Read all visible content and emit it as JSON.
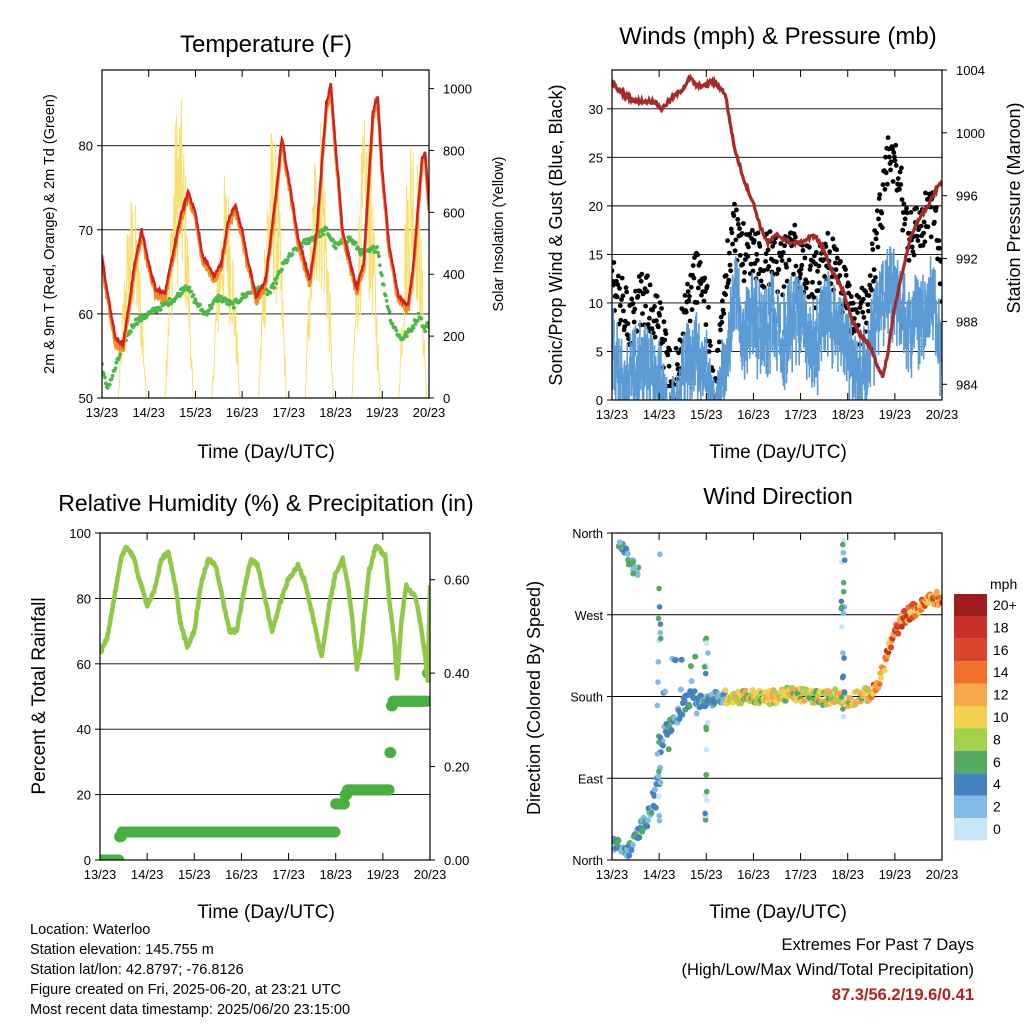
{
  "footer": {
    "location": "Location: Waterloo",
    "elevation": "Station elevation: 145.755 m",
    "latlon": "Station lat/lon: 42.8797; -76.8126",
    "created": "Figure created on Fri, 2025-06-20, at 23:21 UTC",
    "timestamp": "Most recent data timestamp: 2025/06/20 23:15:00",
    "extremes_title": "Extremes For Past 7 Days",
    "extremes_subtitle": "(High/Low/Max Wind/Total Precipitation)",
    "extremes_values": "87.3/56.2/19.6/0.41"
  },
  "chart_data": [
    {
      "type": "line",
      "title": "Temperature (F)",
      "xlabel": "Time (Day/UTC)",
      "ylabel": "2m & 9m T (Red, Orange) & 2m Td (Green)",
      "ylabel_right": "Solar Insolation (Yellow)",
      "x_ticks": [
        "13/23",
        "14/23",
        "15/23",
        "16/23",
        "17/23",
        "18/23",
        "19/23",
        "20/23"
      ],
      "xlim": [
        0,
        7
      ],
      "ylim": [
        50,
        89
      ],
      "y_ticks": [
        50,
        60,
        70,
        80
      ],
      "ylim_right": [
        0,
        1060
      ],
      "y_ticks_right": [
        0,
        200,
        400,
        600,
        800,
        1000
      ],
      "grid_y": [
        60,
        70,
        80
      ],
      "colors": {
        "temp2m": "#d42020",
        "temp9m": "#f08c20",
        "dewpoint": "#4cb848",
        "solar": "#f7e070"
      },
      "temperature_keypoints": [
        [
          0,
          67
        ],
        [
          0.1,
          63
        ],
        [
          0.2,
          60
        ],
        [
          0.3,
          57
        ],
        [
          0.45,
          56.5
        ],
        [
          0.55,
          60
        ],
        [
          0.7,
          66
        ],
        [
          0.85,
          70
        ],
        [
          1,
          66
        ],
        [
          1.15,
          63
        ],
        [
          1.35,
          62.5
        ],
        [
          1.55,
          68
        ],
        [
          1.7,
          72
        ],
        [
          1.85,
          74.5
        ],
        [
          2,
          72
        ],
        [
          2.15,
          67
        ],
        [
          2.4,
          64.5
        ],
        [
          2.55,
          66
        ],
        [
          2.7,
          71
        ],
        [
          2.85,
          73
        ],
        [
          3,
          70
        ],
        [
          3.1,
          67
        ],
        [
          3.3,
          62
        ],
        [
          3.5,
          64
        ],
        [
          3.7,
          73
        ],
        [
          3.85,
          81
        ],
        [
          4,
          76
        ],
        [
          4.2,
          69
        ],
        [
          4.45,
          64
        ],
        [
          4.6,
          70
        ],
        [
          4.8,
          85
        ],
        [
          4.9,
          87.3
        ],
        [
          5,
          80
        ],
        [
          5.15,
          70
        ],
        [
          5.45,
          63
        ],
        [
          5.6,
          66
        ],
        [
          5.8,
          84
        ],
        [
          5.9,
          86
        ],
        [
          6,
          77
        ],
        [
          6.15,
          68
        ],
        [
          6.35,
          62
        ],
        [
          6.55,
          61
        ],
        [
          6.65,
          65
        ],
        [
          6.8,
          75
        ],
        [
          6.85,
          78.5
        ],
        [
          6.92,
          79
        ],
        [
          7,
          73
        ]
      ],
      "dewpoint_keypoints": [
        [
          0,
          54
        ],
        [
          0.1,
          51
        ],
        [
          0.25,
          53
        ],
        [
          0.5,
          57
        ],
        [
          0.7,
          59
        ],
        [
          1,
          60
        ],
        [
          1.3,
          61
        ],
        [
          1.6,
          62
        ],
        [
          1.8,
          63.5
        ],
        [
          2,
          61.5
        ],
        [
          2.2,
          60
        ],
        [
          2.5,
          62
        ],
        [
          2.8,
          61
        ],
        [
          3,
          62
        ],
        [
          3.3,
          63
        ],
        [
          3.6,
          62.5
        ],
        [
          3.9,
          66
        ],
        [
          4.2,
          68
        ],
        [
          4.5,
          69
        ],
        [
          4.8,
          70
        ],
        [
          5,
          68
        ],
        [
          5.3,
          69
        ],
        [
          5.6,
          67
        ],
        [
          5.9,
          68
        ],
        [
          6,
          64
        ],
        [
          6.2,
          59
        ],
        [
          6.4,
          57
        ],
        [
          6.6,
          58
        ],
        [
          6.8,
          60
        ],
        [
          6.9,
          58
        ],
        [
          7,
          59
        ]
      ],
      "solar_peaks": [
        [
          0.65,
          680
        ],
        [
          1.65,
          1005
        ],
        [
          2.65,
          740
        ],
        [
          3.65,
          900
        ],
        [
          4.65,
          960
        ],
        [
          5.65,
          920
        ],
        [
          6.65,
          935
        ]
      ]
    },
    {
      "type": "scatter",
      "title": "Winds (mph) & Pressure (mb)",
      "xlabel": "Time (Day/UTC)",
      "ylabel": "Sonic/Prop Wind & Gust (Blue, Black)",
      "ylabel_right": "Station Pressure (Maroon)",
      "x_ticks": [
        "13/23",
        "14/23",
        "15/23",
        "16/23",
        "17/23",
        "18/23",
        "19/23",
        "20/23"
      ],
      "xlim": [
        0,
        7
      ],
      "ylim": [
        0,
        34
      ],
      "y_ticks": [
        0,
        5,
        10,
        15,
        20,
        25,
        30
      ],
      "ylim_right": [
        983,
        1004
      ],
      "y_ticks_right": [
        984,
        988,
        992,
        996,
        1000,
        1004
      ],
      "grid_y": [
        5,
        10,
        15,
        20,
        25,
        30
      ],
      "colors": {
        "wind": "#5b9bd5",
        "gust": "#000000",
        "pressure": "#a52a2a"
      },
      "wind_keypoints": [
        [
          0,
          8
        ],
        [
          0.2,
          4
        ],
        [
          0.4,
          5
        ],
        [
          0.6,
          6
        ],
        [
          0.8,
          5
        ],
        [
          1,
          4
        ],
        [
          1.15,
          1
        ],
        [
          1.3,
          0
        ],
        [
          1.45,
          3
        ],
        [
          1.6,
          6
        ],
        [
          1.8,
          7
        ],
        [
          2,
          5
        ],
        [
          2.1,
          1
        ],
        [
          2.2,
          0
        ],
        [
          2.3,
          3
        ],
        [
          2.45,
          8
        ],
        [
          2.6,
          13
        ],
        [
          2.8,
          9
        ],
        [
          3,
          11
        ],
        [
          3.2,
          9
        ],
        [
          3.4,
          11
        ],
        [
          3.6,
          8
        ],
        [
          3.8,
          11
        ],
        [
          4,
          10
        ],
        [
          4.3,
          8
        ],
        [
          4.6,
          11
        ],
        [
          5,
          7
        ],
        [
          5.2,
          4
        ],
        [
          5.4,
          6
        ],
        [
          5.6,
          10
        ],
        [
          5.9,
          14
        ],
        [
          6.1,
          12
        ],
        [
          6.3,
          10
        ],
        [
          6.6,
          11
        ],
        [
          6.8,
          13
        ],
        [
          7,
          6
        ]
      ],
      "gust_keypoints": [
        [
          0,
          13
        ],
        [
          0.2,
          10
        ],
        [
          0.4,
          8
        ],
        [
          0.6,
          10
        ],
        [
          0.8,
          10
        ],
        [
          1,
          8
        ],
        [
          1.15,
          4
        ],
        [
          1.3,
          1
        ],
        [
          1.45,
          6
        ],
        [
          1.6,
          10
        ],
        [
          1.8,
          13
        ],
        [
          2,
          10
        ],
        [
          2.1,
          4
        ],
        [
          2.2,
          1
        ],
        [
          2.3,
          6
        ],
        [
          2.45,
          14
        ],
        [
          2.6,
          18
        ],
        [
          2.8,
          15
        ],
        [
          3,
          16
        ],
        [
          3.2,
          14
        ],
        [
          3.4,
          15
        ],
        [
          3.6,
          13
        ],
        [
          3.8,
          16
        ],
        [
          4,
          14
        ],
        [
          4.3,
          12
        ],
        [
          4.6,
          15
        ],
        [
          5,
          10
        ],
        [
          5.2,
          8
        ],
        [
          5.4,
          10
        ],
        [
          5.6,
          16
        ],
        [
          5.8,
          22
        ],
        [
          5.9,
          26
        ],
        [
          6.1,
          22
        ],
        [
          6.3,
          17
        ],
        [
          6.6,
          18
        ],
        [
          6.8,
          20
        ],
        [
          7,
          13
        ]
      ],
      "pressure_keypoints": [
        [
          0,
          1003.3
        ],
        [
          0.1,
          1002.8
        ],
        [
          0.5,
          1002
        ],
        [
          0.9,
          1002
        ],
        [
          1.05,
          1001.5
        ],
        [
          1.2,
          1002
        ],
        [
          1.5,
          1002.8
        ],
        [
          1.65,
          1003.5
        ],
        [
          1.8,
          1003
        ],
        [
          2,
          1003
        ],
        [
          2.1,
          1003.3
        ],
        [
          2.25,
          1003
        ],
        [
          2.4,
          1002.5
        ],
        [
          2.6,
          999
        ],
        [
          2.8,
          997
        ],
        [
          3,
          995.5
        ],
        [
          3.15,
          994
        ],
        [
          3.3,
          993
        ],
        [
          3.5,
          993.5
        ],
        [
          3.8,
          993
        ],
        [
          4,
          993
        ],
        [
          4.3,
          993.5
        ],
        [
          4.5,
          992.5
        ],
        [
          4.7,
          991
        ],
        [
          4.9,
          990
        ],
        [
          5.1,
          988
        ],
        [
          5.3,
          987
        ],
        [
          5.5,
          986.3
        ],
        [
          5.65,
          985
        ],
        [
          5.75,
          984.5
        ],
        [
          5.85,
          986
        ],
        [
          6,
          989
        ],
        [
          6.15,
          991
        ],
        [
          6.3,
          993
        ],
        [
          6.5,
          994.5
        ],
        [
          6.7,
          995.3
        ],
        [
          6.9,
          996.5
        ],
        [
          7,
          997
        ]
      ]
    },
    {
      "type": "line",
      "title": "Relative Humidity (%) & Precipitation (in)",
      "xlabel": "Time (Day/UTC)",
      "ylabel": "Percent & Total Rainfall",
      "x_ticks": [
        "13/23",
        "14/23",
        "15/23",
        "16/23",
        "17/23",
        "18/23",
        "19/23",
        "20/23"
      ],
      "xlim": [
        0,
        7
      ],
      "ylim": [
        0,
        100
      ],
      "y_ticks": [
        0,
        20,
        40,
        60,
        80,
        100
      ],
      "ylim_right": [
        0,
        0.7
      ],
      "y_ticks_right": [
        "0.00",
        "0.20",
        "0.40",
        "0.60"
      ],
      "grid_y": [
        20,
        40,
        60,
        80
      ],
      "colors": {
        "rh": "#92c84a",
        "precip": "#48b040"
      },
      "rh_keypoints": [
        [
          0,
          63
        ],
        [
          0.15,
          68
        ],
        [
          0.3,
          80
        ],
        [
          0.45,
          92
        ],
        [
          0.55,
          96
        ],
        [
          0.7,
          93
        ],
        [
          0.85,
          85
        ],
        [
          1,
          78
        ],
        [
          1.15,
          82
        ],
        [
          1.3,
          92
        ],
        [
          1.45,
          94
        ],
        [
          1.6,
          84
        ],
        [
          1.7,
          73
        ],
        [
          1.85,
          65
        ],
        [
          2,
          70
        ],
        [
          2.15,
          85
        ],
        [
          2.3,
          92
        ],
        [
          2.45,
          90
        ],
        [
          2.6,
          80
        ],
        [
          2.75,
          70
        ],
        [
          2.9,
          70
        ],
        [
          3.05,
          82
        ],
        [
          3.2,
          92
        ],
        [
          3.35,
          90
        ],
        [
          3.5,
          80
        ],
        [
          3.65,
          70
        ],
        [
          3.85,
          80
        ],
        [
          4,
          86
        ],
        [
          4.2,
          90
        ],
        [
          4.35,
          85
        ],
        [
          4.55,
          72
        ],
        [
          4.7,
          62
        ],
        [
          4.85,
          77
        ],
        [
          5,
          88
        ],
        [
          5.15,
          92
        ],
        [
          5.25,
          85
        ],
        [
          5.35,
          74
        ],
        [
          5.45,
          58
        ],
        [
          5.55,
          67
        ],
        [
          5.7,
          88
        ],
        [
          5.85,
          96
        ],
        [
          6.05,
          93
        ],
        [
          6.15,
          78
        ],
        [
          6.25,
          66
        ],
        [
          6.3,
          55
        ],
        [
          6.4,
          74
        ],
        [
          6.5,
          84
        ],
        [
          6.6,
          82
        ],
        [
          6.7,
          80
        ],
        [
          6.8,
          72
        ],
        [
          6.9,
          62
        ],
        [
          6.95,
          55
        ],
        [
          7,
          84
        ]
      ],
      "precip_steps": [
        [
          0,
          0
        ],
        [
          0.3,
          0
        ],
        [
          0.4,
          0.05
        ],
        [
          0.45,
          0.06
        ],
        [
          4.95,
          0.06
        ],
        [
          5.0,
          0.12
        ],
        [
          5.2,
          0.14
        ],
        [
          5.25,
          0.15
        ],
        [
          6.1,
          0.15
        ],
        [
          6.15,
          0.23
        ],
        [
          6.18,
          0.33
        ],
        [
          6.2,
          0.34
        ],
        [
          6.9,
          0.34
        ],
        [
          6.95,
          0.4
        ],
        [
          7,
          0.41
        ]
      ]
    },
    {
      "type": "scatter",
      "title": "Wind Direction",
      "xlabel": "Time (Day/UTC)",
      "ylabel": "Direction (Colored By Speed)",
      "x_ticks": [
        "13/23",
        "14/23",
        "15/23",
        "16/23",
        "17/23",
        "18/23",
        "19/23",
        "20/23"
      ],
      "xlim": [
        0,
        7
      ],
      "ylim": [
        0,
        360
      ],
      "y_tick_labels": [
        "North",
        "East",
        "South",
        "West",
        "North"
      ],
      "grid_y": [
        90,
        180,
        270
      ],
      "legend_title": "mph",
      "legend_labels": [
        "20+",
        "18",
        "16",
        "14",
        "12",
        "10",
        "8",
        "6",
        "4",
        "2",
        "0"
      ],
      "legend_colors": [
        "#a01c1c",
        "#c8302a",
        "#dc4628",
        "#f0702c",
        "#f7a848",
        "#f0d250",
        "#a4d04c",
        "#54aa60",
        "#4482c0",
        "#82bce6",
        "#c8e6f7"
      ],
      "direction_keypoints": [
        [
          0,
          20
        ],
        [
          0.2,
          12
        ],
        [
          0.3,
          8
        ],
        [
          0.45,
          18
        ],
        [
          0.6,
          35
        ],
        [
          0.75,
          45
        ],
        [
          0.9,
          70
        ],
        [
          1,
          100
        ],
        [
          1.1,
          140
        ],
        [
          1.3,
          150
        ],
        [
          1.5,
          170
        ],
        [
          1.7,
          180
        ],
        [
          1.9,
          175
        ],
        [
          2.2,
          178
        ],
        [
          2.5,
          180
        ],
        [
          2.8,
          180
        ],
        [
          3,
          180
        ],
        [
          3.3,
          178
        ],
        [
          3.6,
          182
        ],
        [
          3.9,
          182
        ],
        [
          4.2,
          181
        ],
        [
          4.5,
          178
        ],
        [
          4.8,
          182
        ],
        [
          5,
          175
        ],
        [
          5.2,
          180
        ],
        [
          5.4,
          182
        ],
        [
          5.55,
          185
        ],
        [
          5.7,
          200
        ],
        [
          5.85,
          230
        ],
        [
          6,
          250
        ],
        [
          6.2,
          268
        ],
        [
          6.4,
          275
        ],
        [
          6.6,
          280
        ],
        [
          6.8,
          290
        ],
        [
          7,
          285
        ]
      ],
      "north_cluster": [
        [
          0.2,
          345
        ],
        [
          0.3,
          340
        ],
        [
          0.4,
          330
        ],
        [
          0.5,
          318
        ]
      ]
    }
  ]
}
